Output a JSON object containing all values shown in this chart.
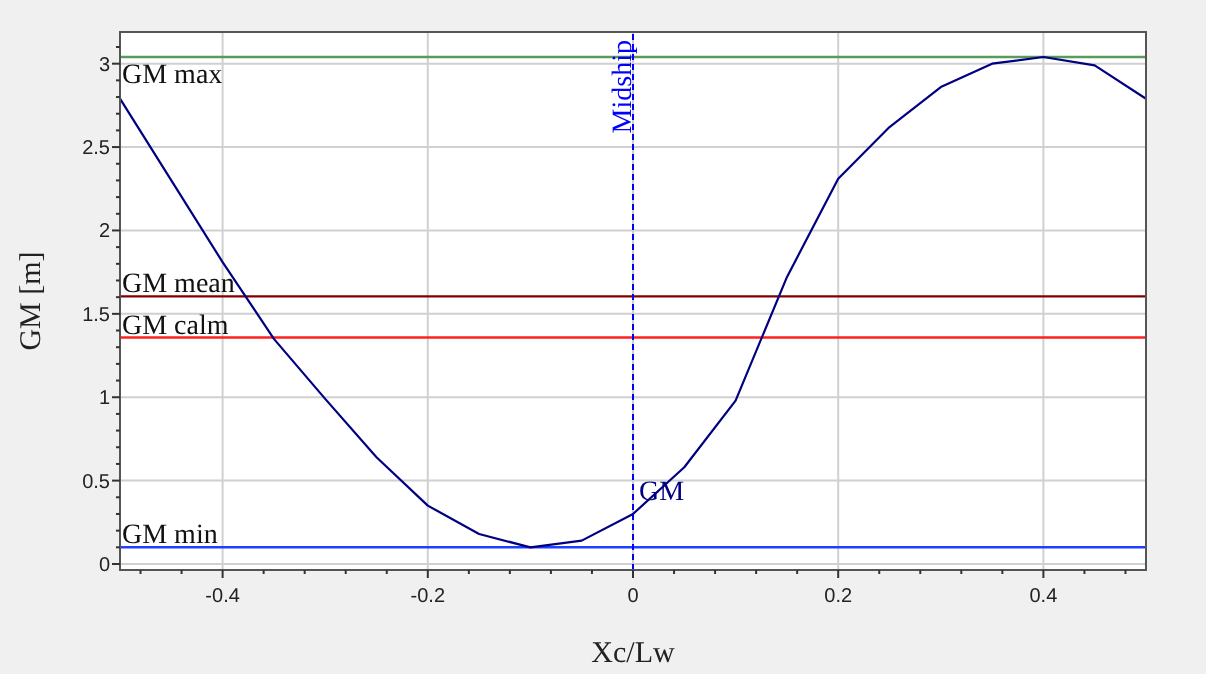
{
  "chart_data": {
    "type": "line",
    "xlabel": "Xc/Lw",
    "ylabel": "GM [m]",
    "x": [
      -0.5,
      -0.45,
      -0.4,
      -0.35,
      -0.3,
      -0.25,
      -0.2,
      -0.15,
      -0.1,
      -0.05,
      0,
      0.05,
      0.1,
      0.15,
      0.2,
      0.25,
      0.3,
      0.35,
      0.4,
      0.45,
      0.5
    ],
    "series": [
      {
        "name": "GM",
        "color": "#000080",
        "values": [
          2.79,
          2.3,
          1.81,
          1.35,
          0.99,
          0.64,
          0.35,
          0.18,
          0.1,
          0.14,
          0.3,
          0.58,
          0.98,
          1.72,
          2.31,
          2.62,
          2.86,
          3.0,
          3.04,
          2.99,
          2.79
        ]
      }
    ],
    "xlim": [
      -0.5,
      0.5
    ],
    "ylim": [
      -0.036,
      3.19
    ],
    "xticks": [
      {
        "value": -0.48,
        "label": null
      },
      {
        "value": -0.44,
        "label": null
      },
      -0.4,
      {
        "value": -0.36,
        "label": null
      },
      {
        "value": -0.32,
        "label": null
      },
      {
        "value": -0.28,
        "label": null
      },
      {
        "value": -0.24,
        "label": null
      },
      -0.2,
      {
        "value": -0.16,
        "label": null
      },
      {
        "value": -0.12,
        "label": null
      },
      {
        "value": -0.08,
        "label": null
      },
      {
        "value": -0.04,
        "label": null
      },
      0,
      {
        "value": 0.04,
        "label": null
      },
      {
        "value": 0.08,
        "label": null
      },
      {
        "value": 0.12,
        "label": null
      },
      {
        "value": 0.16,
        "label": null
      },
      0.2,
      {
        "value": 0.24,
        "label": null
      },
      {
        "value": 0.28,
        "label": null
      },
      {
        "value": 0.32,
        "label": null
      },
      {
        "value": 0.36,
        "label": null
      },
      0.4,
      {
        "value": 0.44,
        "label": null
      },
      {
        "value": 0.48,
        "label": null
      }
    ],
    "yticks": [
      0,
      {
        "value": 0.1,
        "label": null
      },
      {
        "value": 0.2,
        "label": null
      },
      {
        "value": 0.3,
        "label": null
      },
      {
        "value": 0.4,
        "label": null
      },
      0.5,
      {
        "value": 0.6,
        "label": null
      },
      {
        "value": 0.7,
        "label": null
      },
      {
        "value": 0.8,
        "label": null
      },
      {
        "value": 0.9,
        "label": null
      },
      1,
      {
        "value": 1.1,
        "label": null
      },
      {
        "value": 1.2,
        "label": null
      },
      {
        "value": 1.3,
        "label": null
      },
      {
        "value": 1.4,
        "label": null
      },
      1.5,
      {
        "value": 1.6,
        "label": null
      },
      {
        "value": 1.7,
        "label": null
      },
      {
        "value": 1.8,
        "label": null
      },
      {
        "value": 1.9,
        "label": null
      },
      2,
      {
        "value": 2.1,
        "label": null
      },
      {
        "value": 2.2,
        "label": null
      },
      {
        "value": 2.3,
        "label": null
      },
      {
        "value": 2.4,
        "label": null
      },
      2.5,
      {
        "value": 2.6,
        "label": null
      },
      {
        "value": 2.7,
        "label": null
      },
      {
        "value": 2.8,
        "label": null
      },
      {
        "value": 2.9,
        "label": null
      },
      3,
      {
        "value": 3.1,
        "label": null
      }
    ],
    "grid": true,
    "line_style": "solid",
    "marker": "none",
    "ref_lines": [
      {
        "axis": "y",
        "value": 3.04,
        "label": "GM max",
        "color": "#5a9a5a"
      },
      {
        "axis": "y",
        "value": 1.605,
        "label": "GM mean",
        "color": "#800000"
      },
      {
        "axis": "y",
        "value": 1.358,
        "label": "GM calm",
        "color": "#ff2020"
      },
      {
        "axis": "y",
        "value": 0.1,
        "label": "GM min",
        "color": "#2040ff"
      },
      {
        "axis": "x",
        "value": 0,
        "label": "Midship",
        "color": "#0000ff",
        "line_style": "dashed"
      }
    ]
  }
}
